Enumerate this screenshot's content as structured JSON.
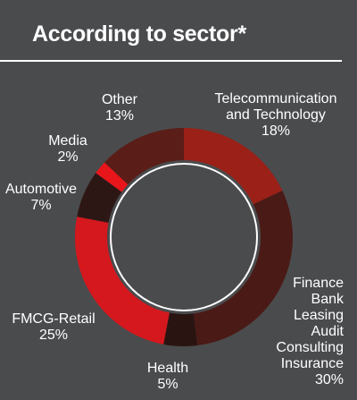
{
  "title": "According to sector*",
  "colors": {
    "background": "#4a4b4d",
    "ring_outline": "#ffffff"
  },
  "chart_data": {
    "type": "pie",
    "variant": "donut",
    "title": "According to sector*",
    "start_angle_deg": 0,
    "direction": "clockwise",
    "slices": [
      {
        "label": "Telecommunication\nand Technology",
        "value": 18,
        "display": "18%",
        "color": "#9a2018"
      },
      {
        "label": "Finance\nBank\nLeasing\nAudit\nConsulting\nInsurance",
        "value": 30,
        "display": "30%",
        "color": "#4a1a16"
      },
      {
        "label": "Health",
        "value": 5,
        "display": "5%",
        "color": "#2a1412"
      },
      {
        "label": "FMCG-Retail",
        "value": 25,
        "display": "25%",
        "color": "#d4181d"
      },
      {
        "label": "Automotive",
        "value": 7,
        "display": "7%",
        "color": "#2d1715"
      },
      {
        "label": "Media",
        "value": 2,
        "display": "2%",
        "color": "#e8161b"
      },
      {
        "label": "Other",
        "value": 13,
        "display": "13%",
        "color": "#5a1d18"
      }
    ]
  }
}
